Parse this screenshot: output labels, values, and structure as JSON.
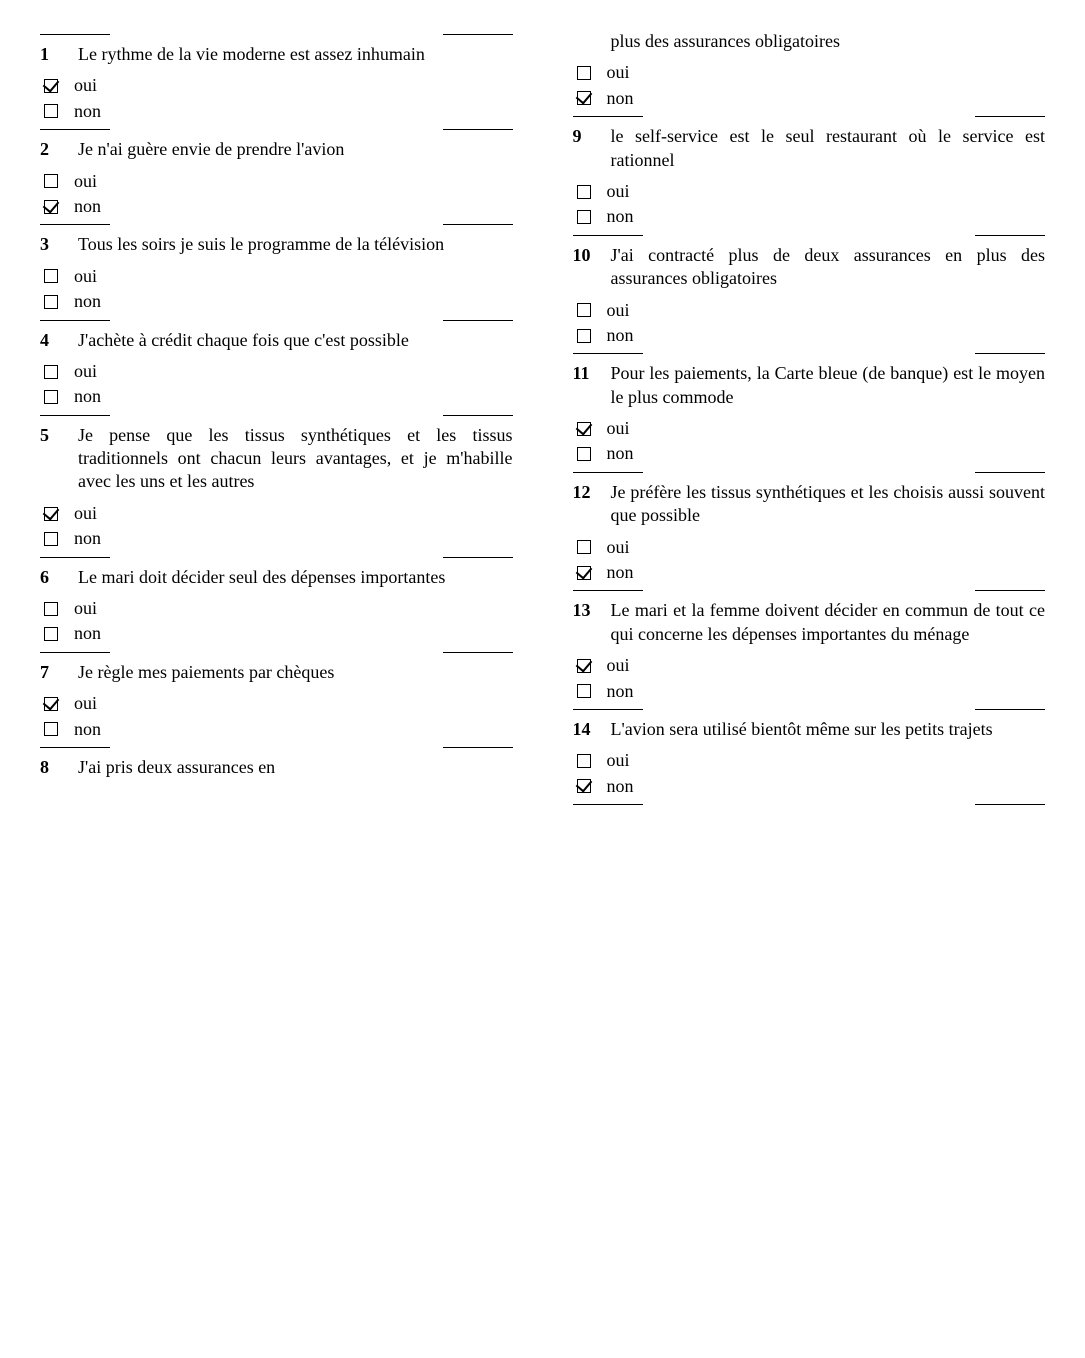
{
  "left_column": {
    "questions": [
      {
        "number": "1",
        "text": "Le rythme de la vie moderne est assez inhumain",
        "oui_checked": true,
        "non_checked": false
      },
      {
        "number": "2",
        "text": "Je n'ai guère envie de prendre l'avion",
        "oui_checked": false,
        "non_checked": true
      },
      {
        "number": "3",
        "text": "Tous les soirs je suis le programme de la télévision",
        "oui_checked": false,
        "non_checked": false
      },
      {
        "number": "4",
        "text": "J'achète à crédit chaque fois que c'est possible",
        "oui_checked": false,
        "non_checked": false
      },
      {
        "number": "5",
        "text": "Je pense que les tissus synthétiques et les tissus traditionnels ont chacun leurs avantages, et je m'habille avec les uns et les autres",
        "oui_checked": true,
        "non_checked": false
      },
      {
        "number": "6",
        "text": "Le mari doit décider seul des dépenses importantes",
        "oui_checked": false,
        "non_checked": false
      },
      {
        "number": "7",
        "text": "Je règle mes paiements par chèques",
        "oui_checked": true,
        "non_checked": false
      },
      {
        "number": "8",
        "text": "J'ai pris deux assurances en"
      }
    ]
  },
  "right_column": {
    "continuation": "plus des assurances obligatoires",
    "continuation_oui_checked": false,
    "continuation_non_checked": true,
    "questions": [
      {
        "number": "9",
        "text": "le self-service est le seul restaurant où le service est rationnel",
        "oui_checked": false,
        "non_checked": false
      },
      {
        "number": "10",
        "text": "J'ai contracté plus de deux assurances en plus des assurances obligatoires",
        "oui_checked": false,
        "non_checked": false
      },
      {
        "number": "11",
        "text": "Pour les paiements, la Carte bleue (de banque) est le moyen le plus commode",
        "oui_checked": true,
        "non_checked": false
      },
      {
        "number": "12",
        "text": "Je préfère les tissus synthétiques et les choisis aussi souvent que possible",
        "oui_checked": false,
        "non_checked": true
      },
      {
        "number": "13",
        "text": "Le mari et la femme doivent décider en commun de tout ce qui concerne les dépenses importantes du ménage",
        "oui_checked": true,
        "non_checked": false
      },
      {
        "number": "14",
        "text": "L'avion sera utilisé bientôt même sur les petits trajets",
        "oui_checked": false,
        "non_checked": true
      }
    ]
  },
  "labels": {
    "oui": "oui",
    "non": "non"
  }
}
